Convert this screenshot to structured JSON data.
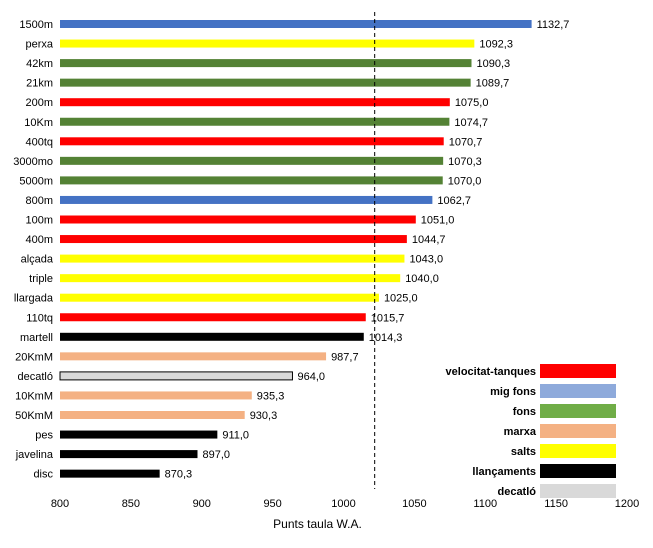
{
  "chart_data": {
    "type": "bar",
    "orientation": "horizontal",
    "xlabel": "Punts taula W.A.",
    "xlim": [
      800,
      1200
    ],
    "xticks": [
      800,
      850,
      900,
      950,
      1000,
      1050,
      1100,
      1150,
      1200
    ],
    "reference_line": {
      "value": 1022,
      "style": "dashed"
    },
    "categories": [
      "1500m",
      "perxa",
      "42km",
      "21km",
      "200m",
      "10Km",
      "400tq",
      "3000mo",
      "5000m",
      "800m",
      "100m",
      "400m",
      "alçada",
      "triple",
      "llargada",
      "110tq",
      "martell",
      "20KmM",
      "decatló",
      "10KmM",
      "50KmM",
      "pes",
      "javelina",
      "disc"
    ],
    "values": [
      1132.7,
      1092.3,
      1090.3,
      1089.7,
      1075.0,
      1074.7,
      1070.7,
      1070.3,
      1070.0,
      1062.7,
      1051.0,
      1044.7,
      1043.0,
      1040.0,
      1025.0,
      1015.7,
      1014.3,
      987.7,
      964.0,
      935.3,
      930.3,
      911.0,
      897.0,
      870.3
    ],
    "value_labels": [
      "1132,7",
      "1092,3",
      "1090,3",
      "1089,7",
      "1075,0",
      "1074,7",
      "1070,7",
      "1070,3",
      "1070,0",
      "1062,7",
      "1051,0",
      "1044,7",
      "1043,0",
      "1040,0",
      "1025,0",
      "1015,7",
      "1014,3",
      "987,7",
      "964,0",
      "935,3",
      "930,3",
      "911,0",
      "897,0",
      "870,3"
    ],
    "groups": [
      "mig fons",
      "salts",
      "fons",
      "fons",
      "velocitat-tanques",
      "fons",
      "velocitat-tanques",
      "fons",
      "fons",
      "mig fons",
      "velocitat-tanques",
      "velocitat-tanques",
      "salts",
      "salts",
      "salts",
      "velocitat-tanques",
      "llançaments",
      "marxa",
      "decatló",
      "marxa",
      "marxa",
      "llançaments",
      "llançaments",
      "llançaments"
    ],
    "legend": {
      "position": "bottom-right",
      "entries": [
        {
          "name": "velocitat-tanques",
          "color": "#ff0000"
        },
        {
          "name": "mig fons",
          "color": "#8eaadb"
        },
        {
          "name": "fons",
          "color": "#70ad47"
        },
        {
          "name": "marxa",
          "color": "#f4b183"
        },
        {
          "name": "salts",
          "color": "#ffff00"
        },
        {
          "name": "llançaments",
          "color": "#000000"
        },
        {
          "name": "decatló",
          "color": "#d9d9d9"
        }
      ]
    },
    "bar_colors": {
      "velocitat-tanques": "#ff0000",
      "mig fons": "#4472c4",
      "fons": "#548235",
      "marxa": "#f4b183",
      "salts": "#ffff00",
      "llançaments": "#000000",
      "decatló": "#d9d9d9"
    },
    "grid": false
  }
}
